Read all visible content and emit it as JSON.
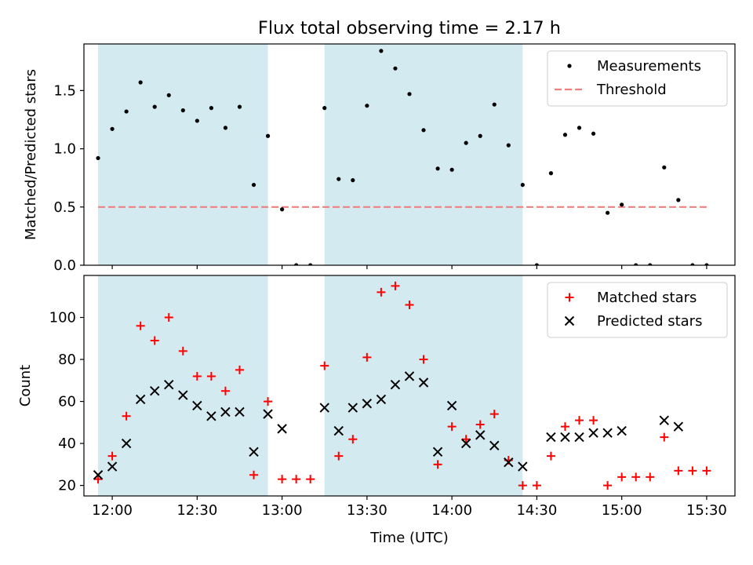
{
  "title": "Flux total observing time = 2.17 h",
  "chart_data": [
    {
      "type": "scatter",
      "ylabel": "Matched/Predicted stars",
      "ylim": [
        0,
        1.9
      ],
      "y_ticks": [
        0.0,
        0.5,
        1.0,
        1.5
      ],
      "y_tick_labels": [
        "0.0",
        "0.5",
        "1.0",
        "1.5"
      ],
      "x_range": [
        "11:50",
        "15:40"
      ],
      "x_ticks": [
        "12:00",
        "12:30",
        "13:00",
        "13:30",
        "14:00",
        "14:30",
        "15:00",
        "15:30"
      ],
      "shaded_intervals": [
        [
          "11:55",
          "12:55"
        ],
        [
          "13:15",
          "14:25"
        ]
      ],
      "shade_color": "#d3eaf0",
      "legend": {
        "position": "top-right",
        "entries": [
          "Measurements",
          "Threshold"
        ]
      },
      "threshold": {
        "label": "Threshold",
        "value": 0.5,
        "x_range": [
          "11:55",
          "15:30"
        ],
        "color": "#f08080"
      },
      "series": [
        {
          "name": "Measurements",
          "marker": "dot",
          "color": "#000000",
          "points": [
            [
              "11:55",
              0.92
            ],
            [
              "12:00",
              1.17
            ],
            [
              "12:05",
              1.32
            ],
            [
              "12:10",
              1.57
            ],
            [
              "12:15",
              1.36
            ],
            [
              "12:20",
              1.46
            ],
            [
              "12:25",
              1.33
            ],
            [
              "12:30",
              1.24
            ],
            [
              "12:35",
              1.35
            ],
            [
              "12:40",
              1.18
            ],
            [
              "12:45",
              1.36
            ],
            [
              "12:50",
              0.69
            ],
            [
              "12:55",
              1.11
            ],
            [
              "13:00",
              0.48
            ],
            [
              "13:05",
              0.0
            ],
            [
              "13:10",
              0.0
            ],
            [
              "13:15",
              1.35
            ],
            [
              "13:20",
              0.74
            ],
            [
              "13:25",
              0.73
            ],
            [
              "13:30",
              1.37
            ],
            [
              "13:35",
              1.84
            ],
            [
              "13:40",
              1.69
            ],
            [
              "13:45",
              1.47
            ],
            [
              "13:50",
              1.16
            ],
            [
              "13:55",
              0.83
            ],
            [
              "14:00",
              0.82
            ],
            [
              "14:05",
              1.05
            ],
            [
              "14:10",
              1.11
            ],
            [
              "14:15",
              1.38
            ],
            [
              "14:20",
              1.03
            ],
            [
              "14:25",
              0.69
            ],
            [
              "14:30",
              0.0
            ],
            [
              "14:35",
              0.79
            ],
            [
              "14:40",
              1.12
            ],
            [
              "14:45",
              1.18
            ],
            [
              "14:50",
              1.13
            ],
            [
              "14:55",
              0.45
            ],
            [
              "15:00",
              0.52
            ],
            [
              "15:05",
              0.0
            ],
            [
              "15:10",
              0.0
            ],
            [
              "15:15",
              0.84
            ],
            [
              "15:20",
              0.56
            ],
            [
              "15:25",
              0.0
            ],
            [
              "15:30",
              0.0
            ]
          ]
        }
      ]
    },
    {
      "type": "scatter",
      "xlabel": "Time (UTC)",
      "ylabel": "Count",
      "ylim": [
        15,
        120
      ],
      "y_ticks": [
        20,
        40,
        60,
        80,
        100
      ],
      "x_range": [
        "11:50",
        "15:40"
      ],
      "x_ticks": [
        "12:00",
        "12:30",
        "13:00",
        "13:30",
        "14:00",
        "14:30",
        "15:00",
        "15:30"
      ],
      "x_tick_labels": [
        "12:00",
        "12:30",
        "13:00",
        "13:30",
        "14:00",
        "14:30",
        "15:00",
        "15:30"
      ],
      "shaded_intervals": [
        [
          "11:55",
          "12:55"
        ],
        [
          "13:15",
          "14:25"
        ]
      ],
      "shade_color": "#d3eaf0",
      "legend": {
        "position": "top-right",
        "entries": [
          "Matched stars",
          "Predicted stars"
        ]
      },
      "series": [
        {
          "name": "Matched stars",
          "marker": "plus",
          "color": "#ff0000",
          "points": [
            [
              "11:55",
              23
            ],
            [
              "12:00",
              34
            ],
            [
              "12:05",
              53
            ],
            [
              "12:10",
              96
            ],
            [
              "12:15",
              89
            ],
            [
              "12:20",
              100
            ],
            [
              "12:25",
              84
            ],
            [
              "12:30",
              72
            ],
            [
              "12:35",
              72
            ],
            [
              "12:40",
              65
            ],
            [
              "12:45",
              75
            ],
            [
              "12:50",
              25
            ],
            [
              "12:55",
              60
            ],
            [
              "13:00",
              23
            ],
            [
              "13:05",
              23
            ],
            [
              "13:10",
              23
            ],
            [
              "13:15",
              77
            ],
            [
              "13:20",
              34
            ],
            [
              "13:25",
              42
            ],
            [
              "13:30",
              81
            ],
            [
              "13:35",
              112
            ],
            [
              "13:40",
              115
            ],
            [
              "13:45",
              106
            ],
            [
              "13:50",
              80
            ],
            [
              "13:55",
              30
            ],
            [
              "14:00",
              48
            ],
            [
              "14:05",
              42
            ],
            [
              "14:10",
              49
            ],
            [
              "14:15",
              54
            ],
            [
              "14:20",
              32
            ],
            [
              "14:25",
              20
            ],
            [
              "14:30",
              20
            ],
            [
              "14:35",
              34
            ],
            [
              "14:40",
              48
            ],
            [
              "14:45",
              51
            ],
            [
              "14:50",
              51
            ],
            [
              "14:55",
              20
            ],
            [
              "15:00",
              24
            ],
            [
              "15:05",
              24
            ],
            [
              "15:10",
              24
            ],
            [
              "15:15",
              43
            ],
            [
              "15:20",
              27
            ],
            [
              "15:25",
              27
            ],
            [
              "15:30",
              27
            ]
          ]
        },
        {
          "name": "Predicted stars",
          "marker": "x",
          "color": "#000000",
          "points": [
            [
              "11:55",
              25
            ],
            [
              "12:00",
              29
            ],
            [
              "12:05",
              40
            ],
            [
              "12:10",
              61
            ],
            [
              "12:15",
              65
            ],
            [
              "12:20",
              68
            ],
            [
              "12:25",
              63
            ],
            [
              "12:30",
              58
            ],
            [
              "12:35",
              53
            ],
            [
              "12:40",
              55
            ],
            [
              "12:45",
              55
            ],
            [
              "12:50",
              36
            ],
            [
              "12:55",
              54
            ],
            [
              "13:00",
              47
            ],
            [
              "13:15",
              57
            ],
            [
              "13:20",
              46
            ],
            [
              "13:25",
              57
            ],
            [
              "13:30",
              59
            ],
            [
              "13:35",
              61
            ],
            [
              "13:40",
              68
            ],
            [
              "13:45",
              72
            ],
            [
              "13:50",
              69
            ],
            [
              "13:55",
              36
            ],
            [
              "14:00",
              58
            ],
            [
              "14:05",
              40
            ],
            [
              "14:10",
              44
            ],
            [
              "14:15",
              39
            ],
            [
              "14:20",
              31
            ],
            [
              "14:25",
              29
            ],
            [
              "14:35",
              43
            ],
            [
              "14:40",
              43
            ],
            [
              "14:45",
              43
            ],
            [
              "14:50",
              45
            ],
            [
              "14:55",
              45
            ],
            [
              "15:00",
              46
            ],
            [
              "15:15",
              51
            ],
            [
              "15:20",
              48
            ]
          ]
        }
      ]
    }
  ]
}
